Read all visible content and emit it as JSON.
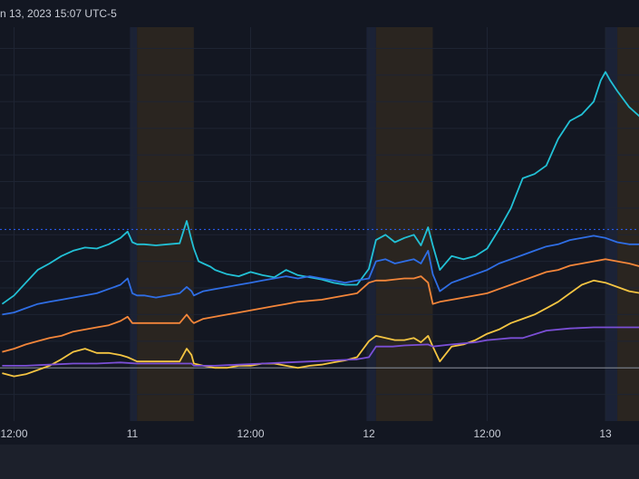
{
  "header": {
    "timestamp_text": "n 13, 2023 15:07 UTC-5"
  },
  "colors": {
    "background": "#131722",
    "grid": "#1e2433",
    "pre_market": "#1b2236",
    "after_hours": "#2a2520",
    "baseline": "#8a8f99",
    "dotted_line": "#2962ff",
    "axis_bar": "#1c202b"
  },
  "chart_data": {
    "type": "line",
    "title": "",
    "xlabel": "",
    "ylabel": "",
    "x_tick_labels": [
      "12:00",
      "11",
      "12:00",
      "12",
      "12:00",
      "13"
    ],
    "x_range": [
      0,
      2.7
    ],
    "y_range": [
      -0.5,
      3.2
    ],
    "baseline_value": 0,
    "reference_line_value": 1.3,
    "extended_hours_bands": [
      {
        "type": "pre",
        "from": 0.54,
        "to": 0.57
      },
      {
        "type": "post",
        "from": 0.57,
        "to": 0.81
      },
      {
        "type": "pre",
        "from": 1.54,
        "to": 1.58
      },
      {
        "type": "post",
        "from": 1.58,
        "to": 1.82
      },
      {
        "type": "pre",
        "from": 2.55,
        "to": 2.6
      },
      {
        "type": "post",
        "from": 2.6,
        "to": 2.7
      }
    ],
    "series": [
      {
        "color": "#22c1d6",
        "x": [
          0.0,
          0.05,
          0.1,
          0.15,
          0.2,
          0.25,
          0.3,
          0.35,
          0.4,
          0.45,
          0.5,
          0.53,
          0.55,
          0.57,
          0.6,
          0.65,
          0.7,
          0.75,
          0.78,
          0.8,
          0.81,
          0.83,
          0.85,
          0.88,
          0.9,
          0.95,
          1.0,
          1.05,
          1.1,
          1.15,
          1.2,
          1.25,
          1.3,
          1.35,
          1.4,
          1.45,
          1.5,
          1.55,
          1.58,
          1.62,
          1.66,
          1.7,
          1.74,
          1.77,
          1.8,
          1.82,
          1.85,
          1.9,
          1.95,
          2.0,
          2.05,
          2.1,
          2.15,
          2.2,
          2.25,
          2.3,
          2.35,
          2.4,
          2.45,
          2.5,
          2.53,
          2.55,
          2.57,
          2.6,
          2.65,
          2.7
        ],
        "y": [
          0.6,
          0.68,
          0.8,
          0.92,
          0.98,
          1.05,
          1.1,
          1.13,
          1.12,
          1.16,
          1.22,
          1.28,
          1.18,
          1.16,
          1.16,
          1.15,
          1.16,
          1.17,
          1.38,
          1.2,
          1.12,
          1.0,
          0.98,
          0.95,
          0.92,
          0.88,
          0.86,
          0.9,
          0.87,
          0.85,
          0.92,
          0.87,
          0.85,
          0.83,
          0.8,
          0.78,
          0.78,
          0.93,
          1.2,
          1.25,
          1.18,
          1.22,
          1.25,
          1.15,
          1.32,
          1.15,
          0.92,
          1.05,
          1.02,
          1.05,
          1.12,
          1.3,
          1.5,
          1.78,
          1.82,
          1.9,
          2.15,
          2.32,
          2.38,
          2.5,
          2.7,
          2.78,
          2.7,
          2.6,
          2.45,
          2.35
        ]
      },
      {
        "color": "#2f6ee5",
        "x": [
          0.0,
          0.05,
          0.1,
          0.15,
          0.2,
          0.25,
          0.3,
          0.35,
          0.4,
          0.45,
          0.5,
          0.53,
          0.55,
          0.57,
          0.6,
          0.65,
          0.7,
          0.75,
          0.78,
          0.8,
          0.81,
          0.83,
          0.85,
          0.9,
          0.95,
          1.0,
          1.05,
          1.1,
          1.15,
          1.2,
          1.25,
          1.3,
          1.35,
          1.4,
          1.45,
          1.5,
          1.55,
          1.58,
          1.62,
          1.66,
          1.7,
          1.74,
          1.77,
          1.8,
          1.82,
          1.85,
          1.9,
          1.95,
          2.0,
          2.05,
          2.1,
          2.15,
          2.2,
          2.25,
          2.3,
          2.35,
          2.4,
          2.45,
          2.5,
          2.55,
          2.6,
          2.65,
          2.7
        ],
        "y": [
          0.5,
          0.52,
          0.56,
          0.6,
          0.62,
          0.64,
          0.66,
          0.68,
          0.7,
          0.74,
          0.78,
          0.84,
          0.7,
          0.68,
          0.68,
          0.66,
          0.68,
          0.7,
          0.76,
          0.72,
          0.68,
          0.7,
          0.72,
          0.74,
          0.76,
          0.78,
          0.8,
          0.82,
          0.84,
          0.86,
          0.84,
          0.86,
          0.84,
          0.82,
          0.8,
          0.82,
          0.84,
          1.0,
          1.02,
          0.98,
          1.0,
          1.02,
          0.98,
          1.1,
          0.88,
          0.72,
          0.8,
          0.84,
          0.88,
          0.92,
          0.98,
          1.02,
          1.06,
          1.1,
          1.14,
          1.16,
          1.2,
          1.22,
          1.24,
          1.22,
          1.18,
          1.16,
          1.16
        ]
      },
      {
        "color": "#f4863a",
        "x": [
          0.0,
          0.05,
          0.1,
          0.15,
          0.2,
          0.25,
          0.3,
          0.35,
          0.4,
          0.45,
          0.5,
          0.53,
          0.55,
          0.57,
          0.6,
          0.65,
          0.7,
          0.75,
          0.78,
          0.8,
          0.81,
          0.85,
          0.9,
          0.95,
          1.0,
          1.05,
          1.1,
          1.15,
          1.2,
          1.25,
          1.3,
          1.35,
          1.4,
          1.45,
          1.5,
          1.55,
          1.58,
          1.62,
          1.66,
          1.7,
          1.74,
          1.77,
          1.8,
          1.82,
          1.85,
          1.9,
          1.95,
          2.0,
          2.05,
          2.1,
          2.15,
          2.2,
          2.25,
          2.3,
          2.35,
          2.4,
          2.45,
          2.5,
          2.55,
          2.6,
          2.65,
          2.7
        ],
        "y": [
          0.15,
          0.18,
          0.22,
          0.25,
          0.28,
          0.3,
          0.34,
          0.36,
          0.38,
          0.4,
          0.44,
          0.48,
          0.42,
          0.42,
          0.42,
          0.42,
          0.42,
          0.42,
          0.5,
          0.44,
          0.42,
          0.46,
          0.48,
          0.5,
          0.52,
          0.54,
          0.56,
          0.58,
          0.6,
          0.62,
          0.63,
          0.64,
          0.66,
          0.68,
          0.7,
          0.8,
          0.82,
          0.82,
          0.83,
          0.84,
          0.84,
          0.86,
          0.8,
          0.6,
          0.62,
          0.64,
          0.66,
          0.68,
          0.7,
          0.74,
          0.78,
          0.82,
          0.86,
          0.9,
          0.92,
          0.96,
          0.98,
          1.0,
          1.02,
          1.0,
          0.98,
          0.95
        ]
      },
      {
        "color": "#f5c542",
        "x": [
          0.0,
          0.05,
          0.1,
          0.15,
          0.2,
          0.25,
          0.3,
          0.35,
          0.4,
          0.45,
          0.5,
          0.53,
          0.55,
          0.57,
          0.6,
          0.65,
          0.7,
          0.75,
          0.78,
          0.8,
          0.81,
          0.85,
          0.9,
          0.95,
          1.0,
          1.05,
          1.1,
          1.15,
          1.2,
          1.25,
          1.3,
          1.35,
          1.4,
          1.45,
          1.5,
          1.55,
          1.58,
          1.62,
          1.66,
          1.7,
          1.74,
          1.77,
          1.8,
          1.82,
          1.85,
          1.9,
          1.95,
          2.0,
          2.05,
          2.1,
          2.15,
          2.2,
          2.25,
          2.3,
          2.35,
          2.4,
          2.45,
          2.5,
          2.55,
          2.6,
          2.65,
          2.7
        ],
        "y": [
          -0.05,
          -0.08,
          -0.06,
          -0.02,
          0.02,
          0.08,
          0.15,
          0.18,
          0.14,
          0.14,
          0.12,
          0.1,
          0.08,
          0.06,
          0.06,
          0.06,
          0.06,
          0.06,
          0.18,
          0.12,
          0.04,
          0.02,
          0.0,
          0.0,
          0.02,
          0.02,
          0.04,
          0.04,
          0.02,
          0.0,
          0.02,
          0.03,
          0.05,
          0.07,
          0.1,
          0.25,
          0.3,
          0.28,
          0.26,
          0.26,
          0.28,
          0.24,
          0.3,
          0.2,
          0.06,
          0.2,
          0.22,
          0.26,
          0.32,
          0.36,
          0.42,
          0.46,
          0.5,
          0.56,
          0.62,
          0.7,
          0.78,
          0.82,
          0.8,
          0.76,
          0.72,
          0.7
        ]
      },
      {
        "color": "#7b4fd6",
        "x": [
          0.0,
          0.1,
          0.2,
          0.3,
          0.4,
          0.5,
          0.57,
          0.6,
          0.7,
          0.8,
          0.81,
          0.9,
          1.0,
          1.1,
          1.2,
          1.3,
          1.4,
          1.5,
          1.55,
          1.58,
          1.65,
          1.7,
          1.8,
          1.82,
          1.9,
          2.0,
          2.05,
          2.1,
          2.15,
          2.2,
          2.3,
          2.4,
          2.5,
          2.6,
          2.7
        ],
        "y": [
          0.02,
          0.02,
          0.03,
          0.04,
          0.04,
          0.05,
          0.04,
          0.04,
          0.04,
          0.04,
          0.02,
          0.02,
          0.03,
          0.04,
          0.05,
          0.06,
          0.07,
          0.08,
          0.1,
          0.2,
          0.2,
          0.21,
          0.22,
          0.2,
          0.22,
          0.24,
          0.26,
          0.27,
          0.28,
          0.28,
          0.35,
          0.37,
          0.38,
          0.38,
          0.38
        ]
      }
    ]
  }
}
